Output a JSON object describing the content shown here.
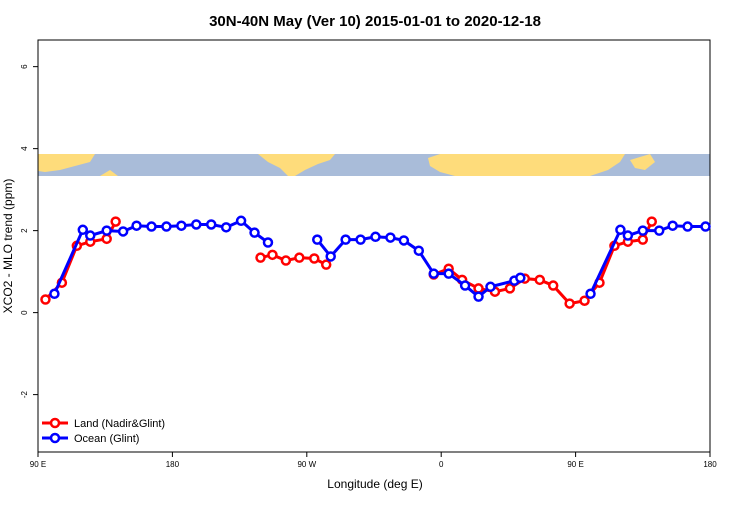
{
  "chart_data": {
    "type": "line",
    "title": "30N-40N May (Ver 10)   2015-01-01 to 2020-12-18",
    "x_label": "Longitude (deg E)",
    "y_label": "XCO2 - MLO trend (ppm)",
    "xlim": [
      90,
      540
    ],
    "xticks": [
      {
        "value": 90,
        "label": "90 E"
      },
      180,
      {
        "value": 270,
        "label": "90 W"
      },
      {
        "value": 360,
        "label": "0"
      },
      {
        "value": 450,
        "label": "90 E"
      },
      {
        "value": 540,
        "label": "180"
      }
    ],
    "ylim": [
      -3.4,
      6.65
    ],
    "yticks": [
      -2,
      0,
      2,
      4,
      6
    ],
    "legend": "bottomleft",
    "series": [
      {
        "name": "Land (Nadir&Glint)",
        "color": "#ff0000",
        "x": [
          95,
          106,
          116,
          125,
          136,
          142,
          190,
          239,
          247,
          256,
          265,
          275,
          283,
          320,
          355,
          365,
          374,
          385,
          396,
          406,
          416,
          426,
          435,
          446,
          456,
          466,
          476,
          485,
          495,
          501
        ],
        "values": [
          0.32,
          0.73,
          1.63,
          1.73,
          1.8,
          2.22,
          null,
          1.34,
          1.41,
          1.27,
          1.34,
          1.32,
          1.17,
          null,
          0.93,
          1.07,
          0.8,
          0.59,
          0.51,
          0.59,
          0.83,
          0.8,
          0.66,
          0.22,
          0.29,
          0.73,
          1.63,
          1.73,
          1.78,
          2.22
        ]
      },
      {
        "name": "Ocean (Glint)",
        "color": "#0000ff",
        "x": [
          101,
          120,
          125,
          136,
          147,
          156,
          166,
          176,
          186,
          196,
          206,
          216,
          226,
          235,
          244,
          260,
          277,
          286,
          296,
          306,
          316,
          326,
          335,
          345,
          355,
          365,
          376,
          385,
          393,
          409,
          413,
          440,
          460,
          480,
          485,
          495,
          506,
          515,
          525,
          537
        ],
        "values": [
          0.46,
          2.02,
          1.88,
          2.0,
          1.98,
          2.12,
          2.1,
          2.1,
          2.12,
          2.15,
          2.15,
          2.08,
          2.24,
          1.95,
          1.71,
          null,
          1.78,
          1.37,
          1.78,
          1.78,
          1.85,
          1.83,
          1.76,
          1.51,
          0.95,
          0.95,
          0.66,
          0.39,
          0.63,
          0.78,
          0.85,
          null,
          0.46,
          2.02,
          1.88,
          2.0,
          2.0,
          2.12,
          2.1,
          2.1
        ]
      }
    ]
  }
}
